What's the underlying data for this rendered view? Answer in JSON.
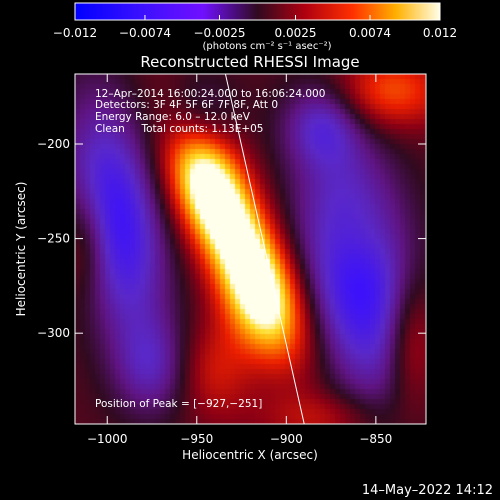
{
  "colorbar": {
    "tick_labels": [
      "−0.012",
      "−0.0074",
      "−0.0025",
      "0.0025",
      "0.0074",
      "0.012"
    ],
    "units": "(photons cm⁻² s⁻¹ asec⁻²)",
    "range": [
      -0.012,
      0.012
    ]
  },
  "title": "Reconstructed RHESSI Image",
  "info_lines": [
    "12–Apr–2014 16:00:24.000 to 16:06:24.000",
    "Detectors: 3F 4F 5F 6F 7F 8F, Att 0",
    "Energy Range: 6.0 – 12.0 keV",
    "Clean     Total counts: 1.13E+05"
  ],
  "peak_label": "Position of Peak = [−927,−251]",
  "xlabel": "Heliocentric X (arcsec)",
  "ylabel": "Heliocentric Y (arcsec)",
  "footer_date": "14–May–2022 14:12",
  "colors": {
    "background": "#000000",
    "text": "#ffffff"
  },
  "chart_data": {
    "type": "heatmap",
    "title": "Reconstructed RHESSI Image",
    "xlabel": "Heliocentric X (arcsec)",
    "ylabel": "Heliocentric Y (arcsec)",
    "xlim": [
      -1018,
      -822
    ],
    "ylim": [
      -348,
      -163
    ],
    "x_ticks": [
      {
        "value": -1000,
        "label": "−1000"
      },
      {
        "value": -950,
        "label": "−950"
      },
      {
        "value": -900,
        "label": "−900"
      },
      {
        "value": -850,
        "label": "−850"
      }
    ],
    "y_ticks": [
      {
        "value": -200,
        "label": "−200"
      },
      {
        "value": -250,
        "label": "−250"
      },
      {
        "value": -300,
        "label": "−300"
      }
    ],
    "colormap": "rhessi-blue-purple-red-yellow-white",
    "value_range": [
      -0.012,
      0.012
    ],
    "peak": {
      "x": -927,
      "y": -251
    },
    "limb_line": [
      {
        "x": -934,
        "y": -163
      },
      {
        "x": -890,
        "y": -348
      }
    ],
    "sources": [
      {
        "kind": "positive",
        "cx": -927,
        "cy": -251,
        "sx": 14,
        "sy": 42,
        "angle_deg": 28,
        "amp": 0.012
      },
      {
        "kind": "positive",
        "cx": -945,
        "cy": -220,
        "sx": 14,
        "sy": 22,
        "angle_deg": 20,
        "amp": 0.006
      },
      {
        "kind": "positive",
        "cx": -915,
        "cy": -285,
        "sx": 15,
        "sy": 22,
        "angle_deg": 20,
        "amp": 0.006
      },
      {
        "kind": "positive",
        "cx": -940,
        "cy": -320,
        "sx": 15,
        "sy": 18,
        "angle_deg": 0,
        "amp": 0.0035
      },
      {
        "kind": "positive",
        "cx": -842,
        "cy": -172,
        "sx": 22,
        "sy": 14,
        "angle_deg": 0,
        "amp": 0.0058
      },
      {
        "kind": "positive",
        "cx": -1012,
        "cy": -252,
        "sx": 10,
        "sy": 20,
        "angle_deg": 0,
        "amp": 0.0035
      },
      {
        "kind": "positive",
        "cx": -860,
        "cy": -250,
        "sx": 14,
        "sy": 16,
        "angle_deg": 0,
        "amp": 0.0018
      },
      {
        "kind": "positive",
        "cx": -830,
        "cy": -305,
        "sx": 10,
        "sy": 25,
        "angle_deg": 0,
        "amp": 0.0045
      },
      {
        "kind": "positive",
        "cx": -880,
        "cy": -345,
        "sx": 25,
        "sy": 10,
        "angle_deg": 0,
        "amp": 0.003
      },
      {
        "kind": "negative",
        "cx": -995,
        "cy": -240,
        "sx": 18,
        "sy": 45,
        "angle_deg": 10,
        "amp": -0.0085
      },
      {
        "kind": "negative",
        "cx": -860,
        "cy": -268,
        "sx": 22,
        "sy": 48,
        "angle_deg": 10,
        "amp": -0.009
      },
      {
        "kind": "negative",
        "cx": -880,
        "cy": -190,
        "sx": 15,
        "sy": 15,
        "angle_deg": 0,
        "amp": -0.0045
      },
      {
        "kind": "negative",
        "cx": -975,
        "cy": -318,
        "sx": 15,
        "sy": 18,
        "angle_deg": 0,
        "amp": -0.004
      },
      {
        "kind": "negative",
        "cx": -950,
        "cy": -185,
        "sx": 15,
        "sy": 15,
        "angle_deg": 0,
        "amp": -0.0035
      }
    ],
    "background_level": 0.0009,
    "grid": false
  }
}
